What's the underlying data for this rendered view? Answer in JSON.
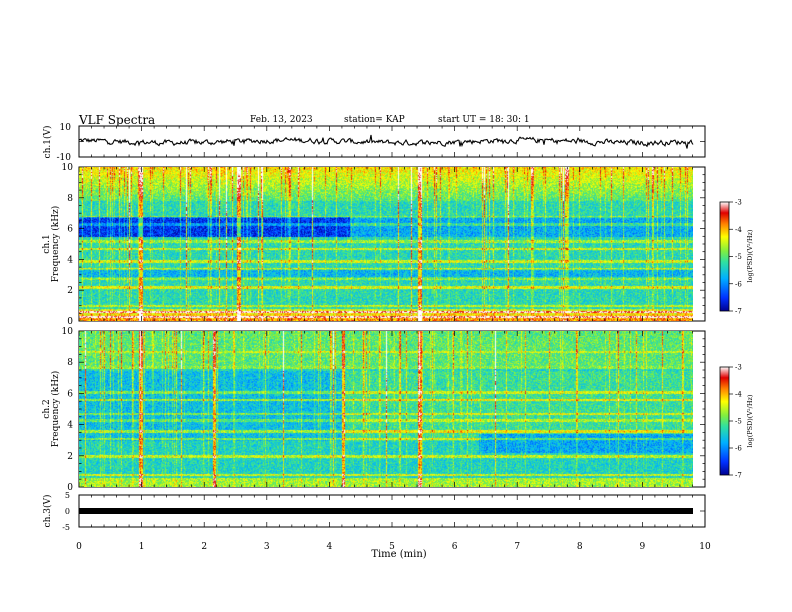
{
  "header": {
    "title": "VLF Spectra",
    "date": "Feb. 13, 2023",
    "station": "station= KAP",
    "start_time": "start  UT  =   18: 30: 1"
  },
  "chart_data": [
    {
      "panel": "ch1-waveform",
      "type": "line",
      "ylabel": "ch.1(V)",
      "ylim": [
        -10,
        10
      ],
      "y_ticks": [
        "10",
        "-10"
      ],
      "xlim": [
        0,
        10
      ],
      "approx_range_V": [
        -3,
        3
      ]
    },
    {
      "panel": "ch1-spectrogram",
      "type": "heatmap",
      "ylabel": "ch.1\nFrequency (kHz)",
      "ylim": [
        0,
        10
      ],
      "y_ticks": [
        "0",
        "2",
        "4",
        "6",
        "8",
        "10"
      ],
      "xlim": [
        0,
        9.8
      ],
      "colorbar": {
        "label": "log(PSD)(V²/Hz)",
        "range": [
          -7,
          -3
        ],
        "ticks": [
          "-3",
          "-4",
          "-5",
          "-6",
          "-7"
        ]
      }
    },
    {
      "panel": "ch2-spectrogram",
      "type": "heatmap",
      "ylabel": "ch.2\nFrequency (kHz)",
      "ylim": [
        0,
        10
      ],
      "y_ticks": [
        "0",
        "2",
        "4",
        "6",
        "8",
        "10"
      ],
      "xlim": [
        0,
        9.8
      ],
      "colorbar": {
        "label": "log(PSD)(V²/Hz)",
        "range": [
          -7,
          -3
        ],
        "ticks": [
          "-3",
          "-4",
          "-5",
          "-6",
          "-7"
        ]
      }
    },
    {
      "panel": "ch3-waveform",
      "type": "line",
      "ylabel": "ch.3(V)",
      "ylim": [
        -5,
        5
      ],
      "y_ticks": [
        "5",
        "0",
        "-5"
      ],
      "xlim": [
        0,
        10
      ],
      "approx_value_V": -1
    }
  ],
  "x_axis": {
    "label": "Time (min)",
    "ticks": [
      "0",
      "1",
      "2",
      "3",
      "4",
      "5",
      "6",
      "7",
      "8",
      "9",
      "10"
    ],
    "range": [
      0,
      10
    ]
  },
  "colormap": [
    "#000090",
    "#0030ff",
    "#00b0ff",
    "#30e0a0",
    "#80ee40",
    "#ffff00",
    "#ff8000",
    "#e00000",
    "#ffffff"
  ]
}
